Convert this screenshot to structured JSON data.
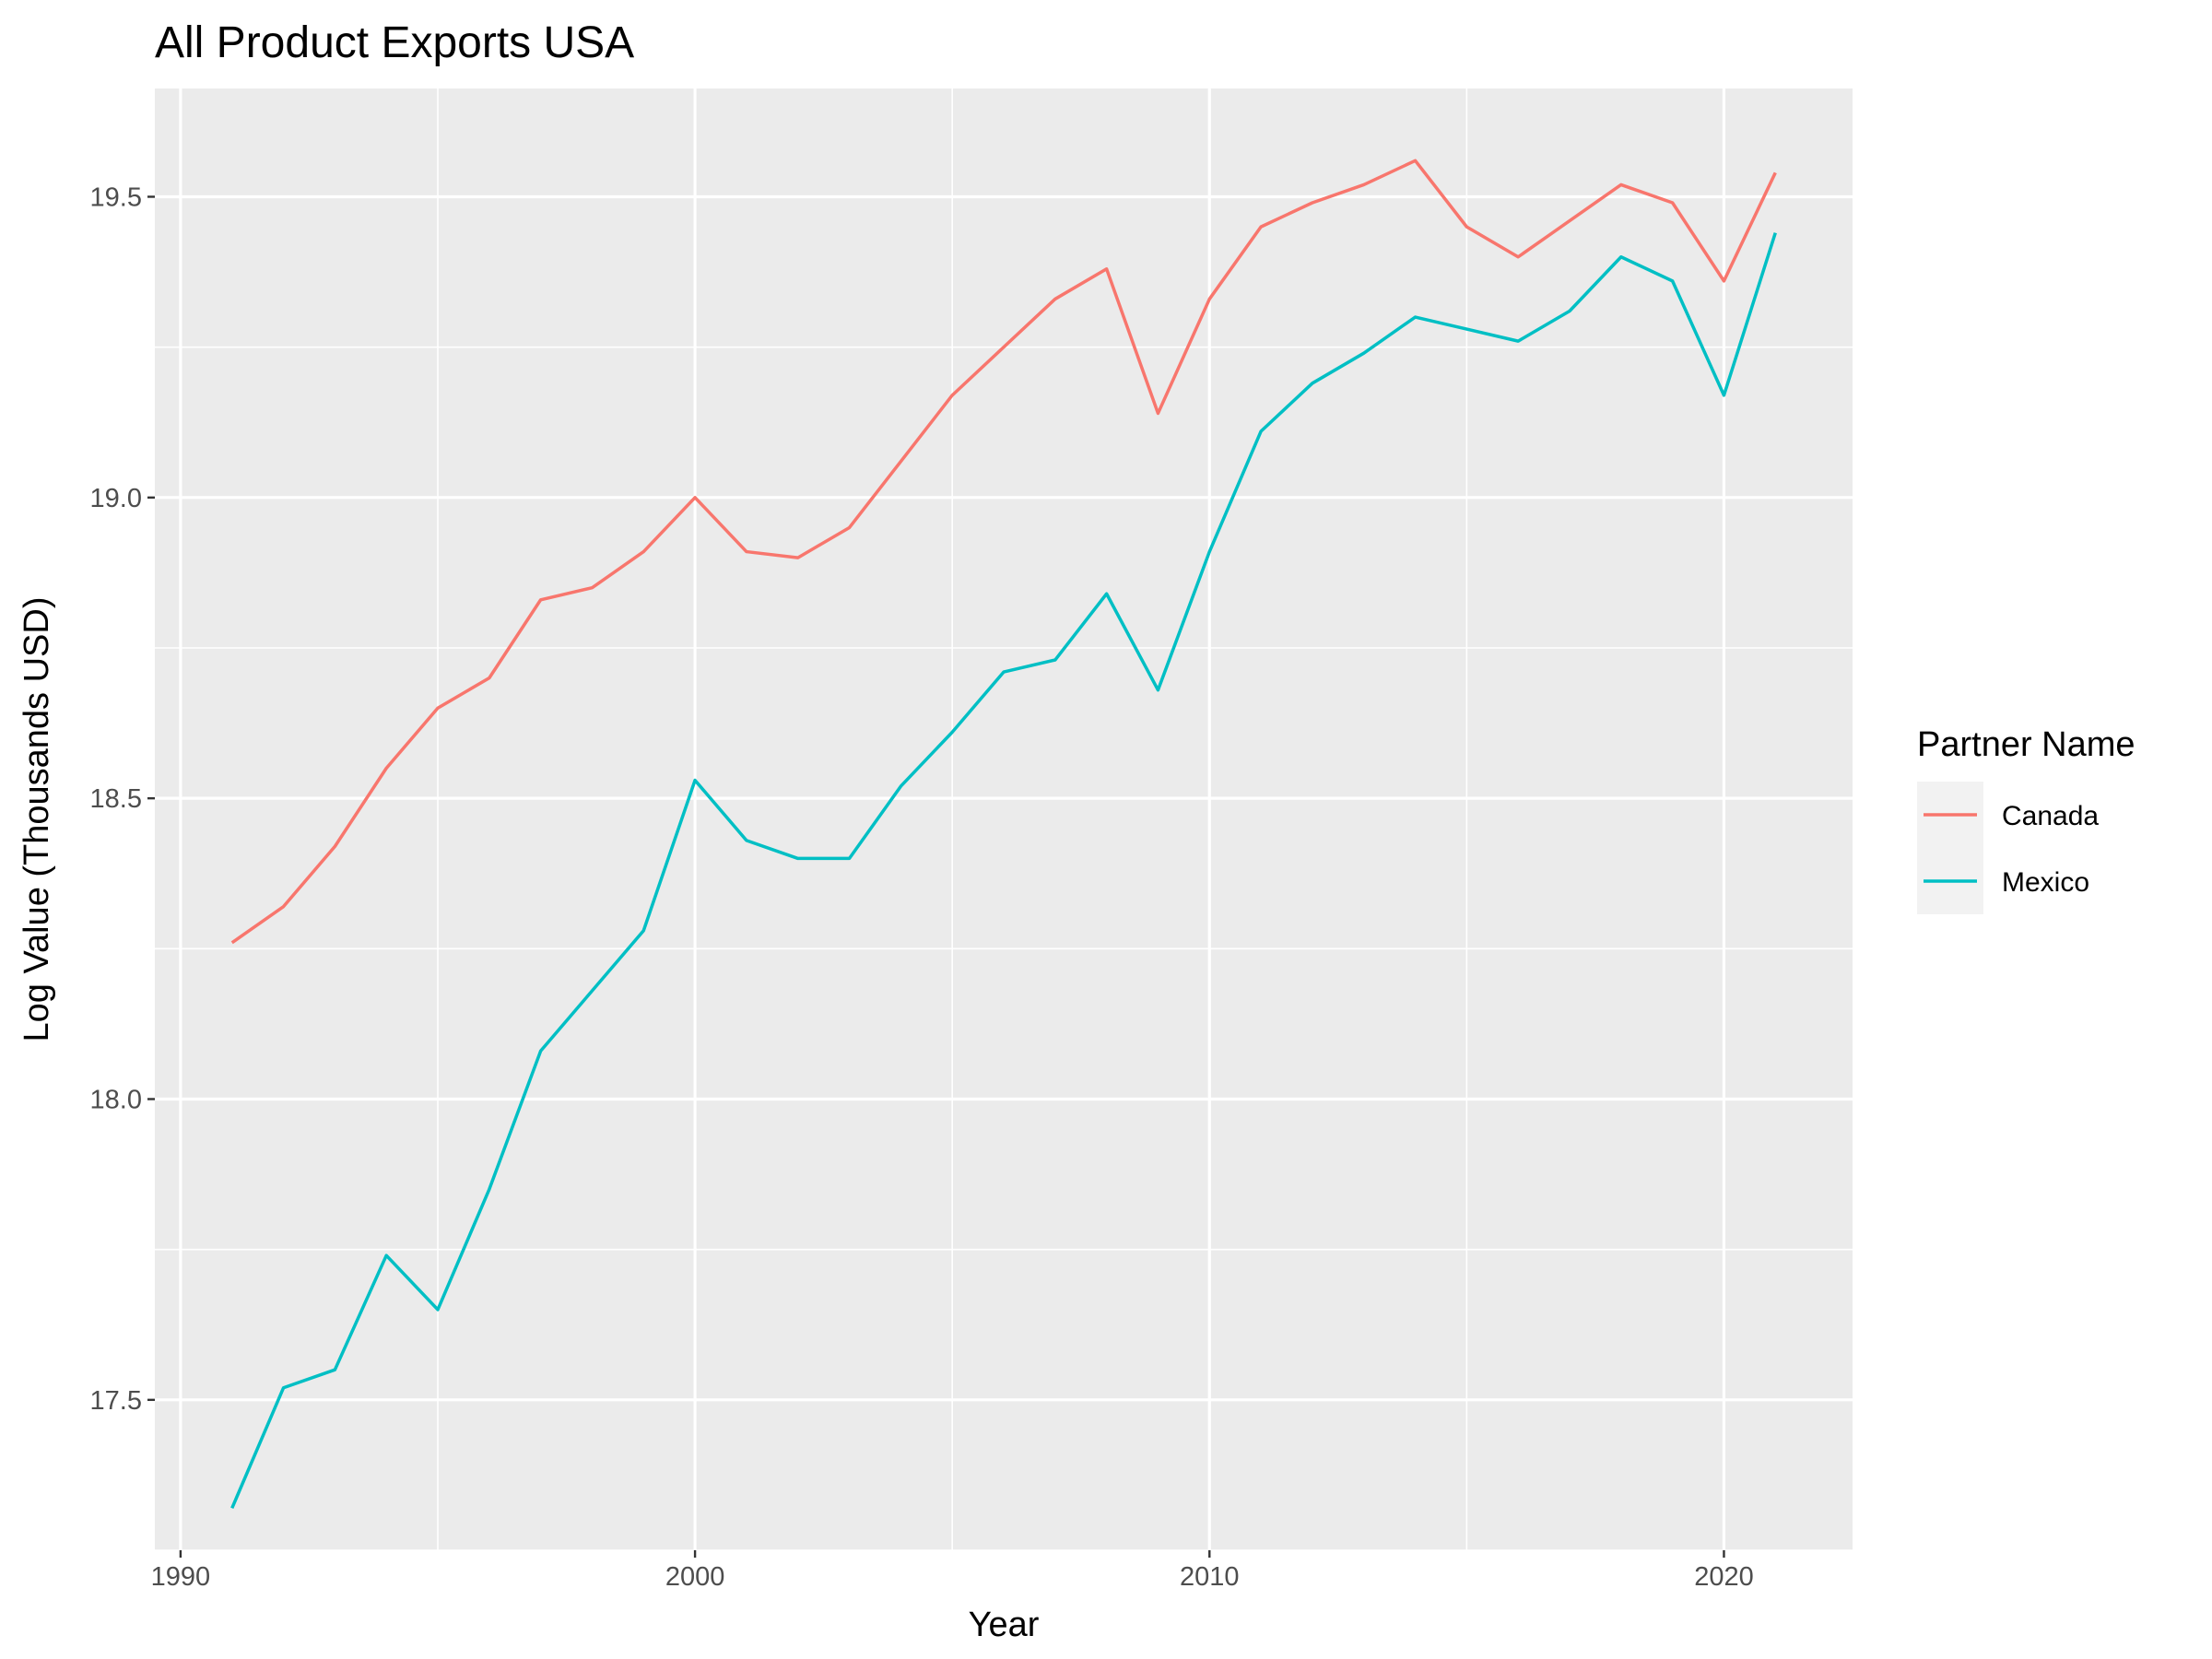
{
  "chart_data": {
    "type": "line",
    "title": "All Product Exports USA",
    "xlabel": "Year",
    "ylabel": "Log Value (Thousands USD)",
    "xlim": [
      1989.5,
      2022.5
    ],
    "ylim": [
      17.25,
      19.68
    ],
    "x_ticks": [
      1990,
      2000,
      2010,
      2020
    ],
    "x_tick_labels": [
      "1990",
      "2000",
      "2010",
      "2020"
    ],
    "y_ticks": [
      17.5,
      18.0,
      18.5,
      19.0,
      19.5
    ],
    "y_tick_labels": [
      "17.5",
      "18.0",
      "18.5",
      "19.0",
      "19.5"
    ],
    "grid": true,
    "legend_position": "right",
    "legend_title": "Partner Name",
    "x": [
      1991,
      1992,
      1993,
      1994,
      1995,
      1996,
      1997,
      1998,
      1999,
      2000,
      2001,
      2002,
      2003,
      2004,
      2005,
      2006,
      2007,
      2008,
      2009,
      2010,
      2011,
      2012,
      2013,
      2014,
      2015,
      2016,
      2017,
      2018,
      2019,
      2020,
      2021
    ],
    "series": [
      {
        "name": "Canada",
        "color": "#F8766D",
        "values": [
          18.26,
          18.32,
          18.42,
          18.55,
          18.65,
          18.7,
          18.83,
          18.85,
          18.91,
          19.0,
          18.91,
          18.9,
          18.95,
          19.06,
          19.17,
          19.25,
          19.33,
          19.38,
          19.14,
          19.33,
          19.45,
          19.49,
          19.52,
          19.56,
          19.45,
          19.4,
          19.46,
          19.52,
          19.49,
          19.36,
          19.54
        ]
      },
      {
        "name": "Mexico",
        "color": "#00BFC4",
        "values": [
          17.32,
          17.52,
          17.55,
          17.74,
          17.65,
          17.85,
          18.08,
          18.18,
          18.28,
          18.53,
          18.43,
          18.4,
          18.4,
          18.52,
          18.61,
          18.71,
          18.73,
          18.84,
          18.68,
          18.91,
          19.11,
          19.19,
          19.24,
          19.3,
          19.28,
          19.26,
          19.31,
          19.4,
          19.36,
          19.17,
          19.44
        ]
      }
    ]
  }
}
